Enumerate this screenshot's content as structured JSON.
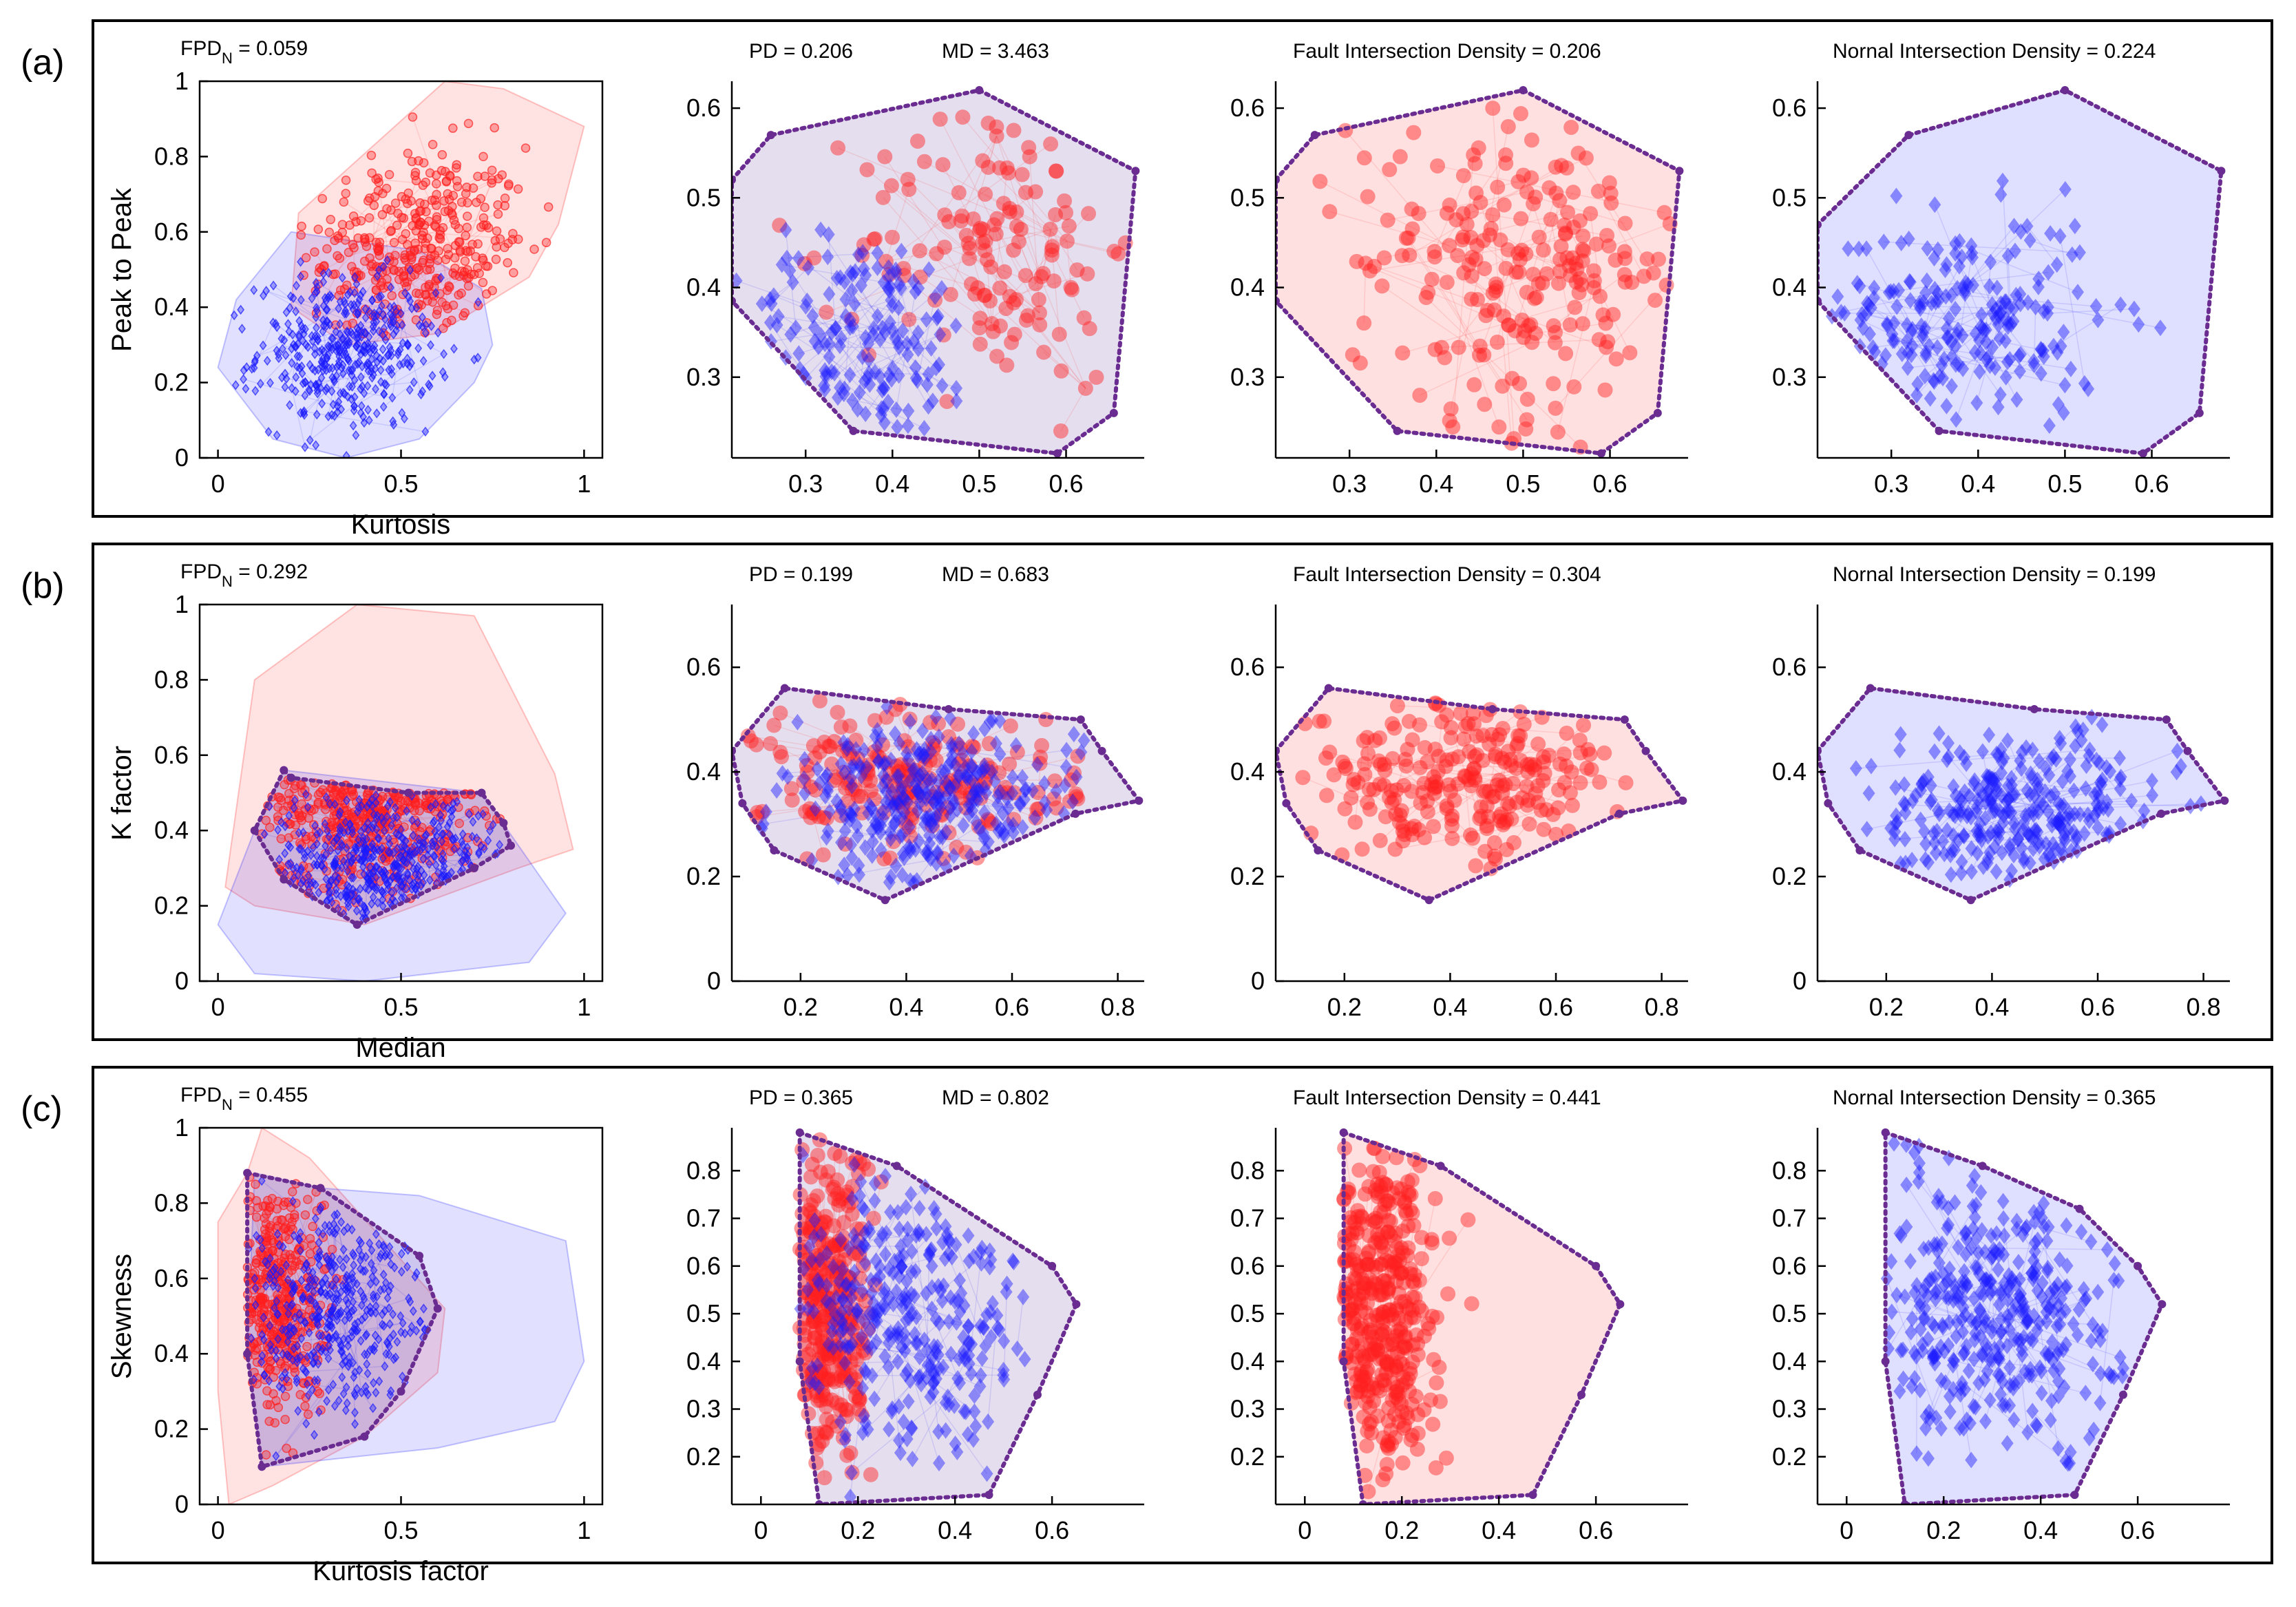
{
  "rows": [
    {
      "label": "(a)",
      "metrics": {
        "fpd_prefix": "FPD",
        "fpd_sub": "N",
        "fpd_value": " = 0.059",
        "pd": "PD = 0.206",
        "md": "MD = 3.463",
        "fault_density": "Fault Intersection Density = 0.206",
        "normal_density": "Nornal Intersection Density = 0.224"
      }
    },
    {
      "label": "(b)",
      "metrics": {
        "fpd_prefix": "FPD",
        "fpd_sub": "N",
        "fpd_value": " = 0.292",
        "pd": "PD = 0.199",
        "md": "MD = 0.683",
        "fault_density": "Fault Intersection Density = 0.304",
        "normal_density": "Nornal Intersection Density = 0.199"
      }
    },
    {
      "label": "(c)",
      "metrics": {
        "fpd_prefix": "FPD",
        "fpd_sub": "N",
        "fpd_value": " = 0.455",
        "pd": "PD = 0.365",
        "md": "MD = 0.802",
        "fault_density": "Fault Intersection Density = 0.441",
        "normal_density": "Nornal Intersection Density = 0.365"
      }
    }
  ],
  "colors": {
    "fault": "#ff2020",
    "normal": "#1a1aff",
    "hull": "#6a2c91",
    "axis": "#000000"
  },
  "chart_data": [
    {
      "id": "a1",
      "type": "scatter",
      "row": 0,
      "col": 0,
      "xlabel": "Kurtosis",
      "ylabel": "Peak to Peak",
      "xlim": [
        -0.05,
        1.05
      ],
      "ylim": [
        0,
        1
      ],
      "xticks": [
        0,
        0.5,
        1
      ],
      "yticks": [
        0,
        0.2,
        0.4,
        0.6,
        0.8,
        1
      ],
      "grid": false,
      "series": [
        {
          "class": "fault",
          "hull": [
            [
              0.22,
              0.65
            ],
            [
              0.62,
              1.0
            ],
            [
              0.78,
              0.98
            ],
            [
              1.0,
              0.88
            ],
            [
              0.93,
              0.62
            ],
            [
              0.85,
              0.48
            ],
            [
              0.6,
              0.33
            ],
            [
              0.35,
              0.3
            ],
            [
              0.2,
              0.4
            ]
          ],
          "cloud": {
            "cx": 0.55,
            "cy": 0.55,
            "sx": 0.15,
            "sy": 0.14,
            "n": 380
          }
        },
        {
          "class": "normal",
          "hull": [
            [
              0.0,
              0.24
            ],
            [
              0.05,
              0.42
            ],
            [
              0.2,
              0.6
            ],
            [
              0.55,
              0.55
            ],
            [
              0.72,
              0.45
            ],
            [
              0.75,
              0.3
            ],
            [
              0.7,
              0.2
            ],
            [
              0.55,
              0.05
            ],
            [
              0.35,
              0.0
            ],
            [
              0.15,
              0.05
            ]
          ],
          "cloud": {
            "cx": 0.35,
            "cy": 0.28,
            "sx": 0.12,
            "sy": 0.1,
            "n": 420
          }
        }
      ]
    },
    {
      "id": "a2",
      "type": "scatter",
      "row": 0,
      "col": 1,
      "xlim": [
        0.215,
        0.69
      ],
      "ylim": [
        0.21,
        0.63
      ],
      "xticks": [
        0.3,
        0.4,
        0.5,
        0.6
      ],
      "yticks": [
        0.3,
        0.4,
        0.5,
        0.6
      ],
      "grid": false,
      "hull": [
        [
          0.215,
          0.385
        ],
        [
          0.215,
          0.52
        ],
        [
          0.26,
          0.57
        ],
        [
          0.5,
          0.62
        ],
        [
          0.68,
          0.53
        ],
        [
          0.655,
          0.26
        ],
        [
          0.59,
          0.215
        ],
        [
          0.355,
          0.24
        ]
      ],
      "series": [
        {
          "class": "fault",
          "cloud": {
            "cx": 0.52,
            "cy": 0.45,
            "sx": 0.08,
            "sy": 0.08,
            "n": 140
          }
        },
        {
          "class": "normal",
          "cloud": {
            "cx": 0.36,
            "cy": 0.34,
            "sx": 0.07,
            "sy": 0.06,
            "n": 160
          }
        }
      ]
    },
    {
      "id": "a3",
      "type": "scatter",
      "row": 0,
      "col": 2,
      "xlim": [
        0.215,
        0.69
      ],
      "ylim": [
        0.21,
        0.63
      ],
      "xticks": [
        0.3,
        0.4,
        0.5,
        0.6
      ],
      "yticks": [
        0.3,
        0.4,
        0.5,
        0.6
      ],
      "grid": false,
      "hull": [
        [
          0.215,
          0.385
        ],
        [
          0.215,
          0.52
        ],
        [
          0.26,
          0.57
        ],
        [
          0.5,
          0.62
        ],
        [
          0.68,
          0.53
        ],
        [
          0.655,
          0.26
        ],
        [
          0.59,
          0.215
        ],
        [
          0.355,
          0.24
        ]
      ],
      "series": [
        {
          "class": "fault",
          "cloud": {
            "cx": 0.5,
            "cy": 0.43,
            "sx": 0.1,
            "sy": 0.09,
            "n": 220
          }
        }
      ]
    },
    {
      "id": "a4",
      "type": "scatter",
      "row": 0,
      "col": 3,
      "xlim": [
        0.215,
        0.69
      ],
      "ylim": [
        0.21,
        0.63
      ],
      "xticks": [
        0.3,
        0.4,
        0.5,
        0.6
      ],
      "yticks": [
        0.3,
        0.4,
        0.5,
        0.6
      ],
      "grid": false,
      "hull": [
        [
          0.215,
          0.385
        ],
        [
          0.215,
          0.47
        ],
        [
          0.32,
          0.57
        ],
        [
          0.5,
          0.62
        ],
        [
          0.68,
          0.53
        ],
        [
          0.655,
          0.26
        ],
        [
          0.59,
          0.215
        ],
        [
          0.355,
          0.24
        ]
      ],
      "series": [
        {
          "class": "normal",
          "cloud": {
            "cx": 0.38,
            "cy": 0.36,
            "sx": 0.08,
            "sy": 0.06,
            "n": 220
          }
        }
      ]
    },
    {
      "id": "b1",
      "type": "scatter",
      "row": 1,
      "col": 0,
      "xlabel": "Median",
      "ylabel": "K factor",
      "xlim": [
        -0.05,
        1.05
      ],
      "ylim": [
        0,
        1
      ],
      "xticks": [
        0,
        0.5,
        1
      ],
      "yticks": [
        0,
        0.2,
        0.4,
        0.6,
        0.8,
        1
      ],
      "grid": false,
      "hull": [
        [
          0.18,
          0.56
        ],
        [
          0.2,
          0.54
        ],
        [
          0.52,
          0.5
        ],
        [
          0.72,
          0.5
        ],
        [
          0.78,
          0.42
        ],
        [
          0.8,
          0.36
        ],
        [
          0.7,
          0.3
        ],
        [
          0.38,
          0.15
        ],
        [
          0.18,
          0.27
        ],
        [
          0.1,
          0.4
        ]
      ],
      "series": [
        {
          "class": "fault",
          "hull": [
            [
              0.02,
              0.25
            ],
            [
              0.1,
              0.8
            ],
            [
              0.38,
              1.0
            ],
            [
              0.7,
              0.97
            ],
            [
              0.92,
              0.55
            ],
            [
              0.97,
              0.35
            ],
            [
              0.82,
              0.3
            ],
            [
              0.4,
              0.15
            ],
            [
              0.1,
              0.2
            ]
          ],
          "cloud": {
            "cx": 0.42,
            "cy": 0.55,
            "sx": 0.16,
            "sy": 0.17,
            "n": 420
          }
        },
        {
          "class": "normal",
          "hull": [
            [
              0.0,
              0.15
            ],
            [
              0.1,
              0.4
            ],
            [
              0.18,
              0.56
            ],
            [
              0.72,
              0.5
            ],
            [
              0.95,
              0.18
            ],
            [
              0.85,
              0.05
            ],
            [
              0.4,
              0.0
            ],
            [
              0.1,
              0.02
            ]
          ],
          "cloud": {
            "cx": 0.45,
            "cy": 0.28,
            "sx": 0.18,
            "sy": 0.1,
            "n": 440
          }
        }
      ]
    },
    {
      "id": "b2",
      "type": "scatter",
      "row": 1,
      "col": 1,
      "xlim": [
        0.07,
        0.85
      ],
      "ylim": [
        0,
        0.72
      ],
      "xticks": [
        0.2,
        0.4,
        0.6,
        0.8
      ],
      "yticks": [
        0,
        0.2,
        0.4,
        0.6
      ],
      "grid": false,
      "hull": [
        [
          0.07,
          0.44
        ],
        [
          0.17,
          0.56
        ],
        [
          0.48,
          0.52
        ],
        [
          0.73,
          0.5
        ],
        [
          0.77,
          0.44
        ],
        [
          0.84,
          0.345
        ],
        [
          0.72,
          0.32
        ],
        [
          0.36,
          0.155
        ],
        [
          0.15,
          0.25
        ],
        [
          0.09,
          0.34
        ]
      ],
      "series": [
        {
          "class": "fault",
          "cloud": {
            "cx": 0.43,
            "cy": 0.38,
            "sx": 0.15,
            "sy": 0.08,
            "n": 200
          }
        },
        {
          "class": "normal",
          "cloud": {
            "cx": 0.45,
            "cy": 0.33,
            "sx": 0.14,
            "sy": 0.08,
            "n": 300
          }
        }
      ]
    },
    {
      "id": "b3",
      "type": "scatter",
      "row": 1,
      "col": 2,
      "xlim": [
        0.07,
        0.85
      ],
      "ylim": [
        0,
        0.72
      ],
      "xticks": [
        0.2,
        0.4,
        0.6,
        0.8
      ],
      "yticks": [
        0,
        0.2,
        0.4,
        0.6
      ],
      "grid": false,
      "hull": [
        [
          0.07,
          0.44
        ],
        [
          0.17,
          0.56
        ],
        [
          0.48,
          0.52
        ],
        [
          0.73,
          0.5
        ],
        [
          0.77,
          0.44
        ],
        [
          0.84,
          0.345
        ],
        [
          0.72,
          0.32
        ],
        [
          0.36,
          0.155
        ],
        [
          0.15,
          0.25
        ],
        [
          0.09,
          0.34
        ]
      ],
      "series": [
        {
          "class": "fault",
          "cloud": {
            "cx": 0.43,
            "cy": 0.38,
            "sx": 0.15,
            "sy": 0.08,
            "n": 240
          }
        }
      ]
    },
    {
      "id": "b4",
      "type": "scatter",
      "row": 1,
      "col": 3,
      "xlim": [
        0.07,
        0.85
      ],
      "ylim": [
        0,
        0.72
      ],
      "xticks": [
        0.2,
        0.4,
        0.6,
        0.8
      ],
      "yticks": [
        0,
        0.2,
        0.4,
        0.6
      ],
      "grid": false,
      "hull": [
        [
          0.07,
          0.44
        ],
        [
          0.17,
          0.56
        ],
        [
          0.48,
          0.52
        ],
        [
          0.73,
          0.5
        ],
        [
          0.77,
          0.44
        ],
        [
          0.84,
          0.345
        ],
        [
          0.72,
          0.32
        ],
        [
          0.36,
          0.155
        ],
        [
          0.15,
          0.25
        ],
        [
          0.09,
          0.34
        ]
      ],
      "series": [
        {
          "class": "normal",
          "cloud": {
            "cx": 0.45,
            "cy": 0.32,
            "sx": 0.14,
            "sy": 0.08,
            "n": 300
          }
        }
      ]
    },
    {
      "id": "c1",
      "type": "scatter",
      "row": 2,
      "col": 0,
      "xlabel": "Kurtosis factor",
      "ylabel": "Skewness",
      "xlim": [
        -0.05,
        1.05
      ],
      "ylim": [
        0,
        1
      ],
      "xticks": [
        0,
        0.5,
        1
      ],
      "yticks": [
        0,
        0.2,
        0.4,
        0.6,
        0.8,
        1
      ],
      "grid": false,
      "hull": [
        [
          0.08,
          0.88
        ],
        [
          0.28,
          0.84
        ],
        [
          0.55,
          0.66
        ],
        [
          0.6,
          0.52
        ],
        [
          0.5,
          0.3
        ],
        [
          0.4,
          0.18
        ],
        [
          0.12,
          0.1
        ],
        [
          0.08,
          0.4
        ]
      ],
      "series": [
        {
          "class": "fault",
          "hull": [
            [
              0.0,
              0.3
            ],
            [
              0.0,
              0.75
            ],
            [
              0.08,
              0.88
            ],
            [
              0.12,
              1.0
            ],
            [
              0.25,
              0.92
            ],
            [
              0.62,
              0.52
            ],
            [
              0.6,
              0.35
            ],
            [
              0.4,
              0.18
            ],
            [
              0.15,
              0.05
            ],
            [
              0.03,
              0.0
            ]
          ],
          "cloud": {
            "cx": 0.15,
            "cy": 0.55,
            "sx": 0.07,
            "sy": 0.17,
            "n": 420
          }
        },
        {
          "class": "normal",
          "hull": [
            [
              0.1,
              0.88
            ],
            [
              0.28,
              0.84
            ],
            [
              0.55,
              0.82
            ],
            [
              0.95,
              0.7
            ],
            [
              1.0,
              0.38
            ],
            [
              0.92,
              0.22
            ],
            [
              0.6,
              0.15
            ],
            [
              0.12,
              0.1
            ],
            [
              0.08,
              0.4
            ]
          ],
          "cloud": {
            "cx": 0.32,
            "cy": 0.52,
            "sx": 0.15,
            "sy": 0.14,
            "n": 420
          }
        }
      ]
    },
    {
      "id": "c2",
      "type": "scatter",
      "row": 2,
      "col": 1,
      "xlim": [
        -0.06,
        0.79
      ],
      "ylim": [
        0.1,
        0.89
      ],
      "xticks": [
        0,
        0.2,
        0.4,
        0.6
      ],
      "yticks": [
        0.2,
        0.3,
        0.4,
        0.5,
        0.6,
        0.7,
        0.8
      ],
      "grid": false,
      "hull": [
        [
          0.08,
          0.88
        ],
        [
          0.28,
          0.81
        ],
        [
          0.6,
          0.6
        ],
        [
          0.65,
          0.52
        ],
        [
          0.57,
          0.33
        ],
        [
          0.47,
          0.12
        ],
        [
          0.12,
          0.1
        ],
        [
          0.08,
          0.4
        ]
      ],
      "series": [
        {
          "class": "fault",
          "cloud": {
            "cx": 0.13,
            "cy": 0.5,
            "sx": 0.05,
            "sy": 0.18,
            "n": 300
          }
        },
        {
          "class": "normal",
          "cloud": {
            "cx": 0.3,
            "cy": 0.5,
            "sx": 0.13,
            "sy": 0.15,
            "n": 320
          }
        }
      ]
    },
    {
      "id": "c3",
      "type": "scatter",
      "row": 2,
      "col": 2,
      "xlim": [
        -0.06,
        0.79
      ],
      "ylim": [
        0.1,
        0.89
      ],
      "xticks": [
        0,
        0.2,
        0.4,
        0.6
      ],
      "yticks": [
        0.2,
        0.3,
        0.4,
        0.5,
        0.6,
        0.7,
        0.8
      ],
      "grid": false,
      "hull": [
        [
          0.08,
          0.88
        ],
        [
          0.28,
          0.81
        ],
        [
          0.6,
          0.6
        ],
        [
          0.65,
          0.52
        ],
        [
          0.57,
          0.33
        ],
        [
          0.47,
          0.12
        ],
        [
          0.12,
          0.1
        ],
        [
          0.08,
          0.4
        ]
      ],
      "series": [
        {
          "class": "fault",
          "cloud": {
            "cx": 0.15,
            "cy": 0.5,
            "sx": 0.06,
            "sy": 0.18,
            "n": 380
          }
        }
      ]
    },
    {
      "id": "c4",
      "type": "scatter",
      "row": 2,
      "col": 3,
      "xlim": [
        -0.06,
        0.79
      ],
      "ylim": [
        0.1,
        0.89
      ],
      "xticks": [
        0,
        0.2,
        0.4,
        0.6
      ],
      "yticks": [
        0.2,
        0.3,
        0.4,
        0.5,
        0.6,
        0.7,
        0.8
      ],
      "grid": false,
      "hull": [
        [
          0.08,
          0.88
        ],
        [
          0.28,
          0.81
        ],
        [
          0.48,
          0.72
        ],
        [
          0.6,
          0.6
        ],
        [
          0.65,
          0.52
        ],
        [
          0.57,
          0.33
        ],
        [
          0.47,
          0.12
        ],
        [
          0.12,
          0.1
        ],
        [
          0.08,
          0.4
        ]
      ],
      "series": [
        {
          "class": "normal",
          "cloud": {
            "cx": 0.3,
            "cy": 0.52,
            "sx": 0.13,
            "sy": 0.15,
            "n": 380
          }
        }
      ]
    }
  ]
}
